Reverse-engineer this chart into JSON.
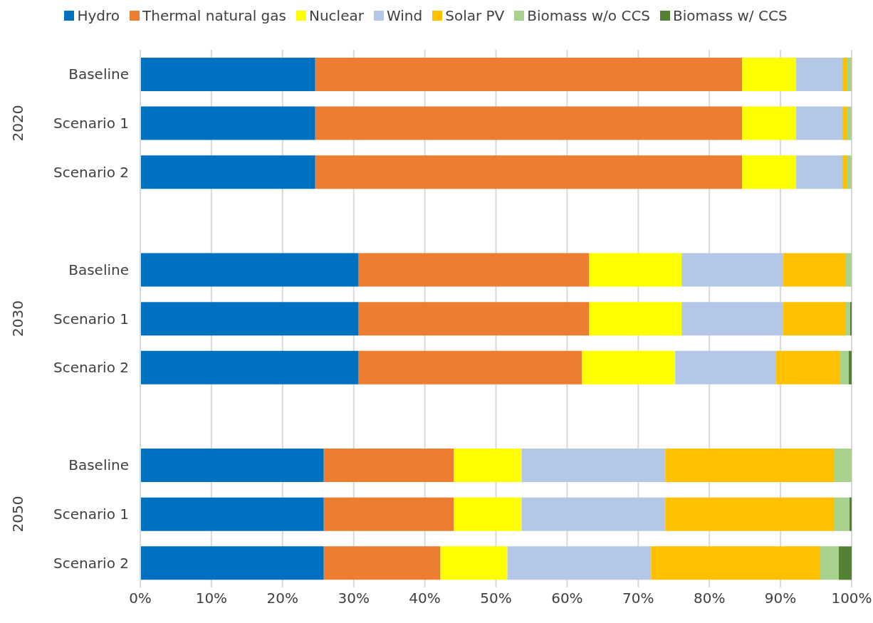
{
  "chart_data": {
    "type": "bar",
    "orientation": "horizontal",
    "stacked": true,
    "categories": [
      "Baseline",
      "Scenario 1",
      "Scenario 2",
      null,
      "Baseline",
      "Scenario 1",
      "Scenario 2",
      null,
      "Baseline",
      "Scenario 1",
      "Scenario 2"
    ],
    "annotations": [
      "2020",
      "2030",
      "2050"
    ],
    "series": [
      {
        "name": "Hydro",
        "color": "#0070c0",
        "values": [
          24.6,
          24.6,
          24.6,
          null,
          30.7,
          30.7,
          30.7,
          null,
          25.8,
          25.8,
          25.8
        ]
      },
      {
        "name": "Thermal natural gas",
        "color": "#ed7d31",
        "values": [
          60.0,
          60.0,
          60.0,
          null,
          32.4,
          32.4,
          31.4,
          null,
          18.3,
          18.3,
          16.4
        ]
      },
      {
        "name": "Nuclear",
        "color": "#ffff00",
        "values": [
          7.6,
          7.6,
          7.6,
          null,
          13.0,
          13.0,
          13.1,
          null,
          9.5,
          9.5,
          9.4
        ]
      },
      {
        "name": "Wind",
        "color": "#b4c7e7",
        "values": [
          6.5,
          6.5,
          6.5,
          null,
          14.3,
          14.3,
          14.2,
          null,
          20.2,
          20.2,
          20.2
        ]
      },
      {
        "name": "Solar PV",
        "color": "#ffc000",
        "values": [
          0.7,
          0.7,
          0.7,
          null,
          8.8,
          8.8,
          8.9,
          null,
          23.7,
          23.7,
          23.7
        ]
      },
      {
        "name": "Biomass w/o CCS",
        "color": "#a9d18e",
        "values": [
          0.6,
          0.6,
          0.6,
          null,
          0.8,
          0.6,
          1.3,
          null,
          2.5,
          2.2,
          2.7
        ]
      },
      {
        "name": "Biomass w/ CCS",
        "color": "#548235",
        "values": [
          0,
          0,
          0,
          null,
          0,
          0.2,
          0.4,
          null,
          0,
          0.3,
          1.8
        ]
      }
    ],
    "xlim": [
      0,
      100
    ],
    "xticks": [
      {
        "value": 0,
        "label": "0%"
      },
      {
        "value": 10,
        "label": "10%"
      },
      {
        "value": 20,
        "label": "20%"
      },
      {
        "value": 30,
        "label": "30%"
      },
      {
        "value": 40,
        "label": "40%"
      },
      {
        "value": 50,
        "label": "50%"
      },
      {
        "value": 60,
        "label": "60%"
      },
      {
        "value": 70,
        "label": "70%"
      },
      {
        "value": 80,
        "label": "80%"
      },
      {
        "value": 90,
        "label": "90%"
      },
      {
        "value": 100,
        "label": "100%"
      }
    ],
    "grid": "x",
    "legend": "top"
  }
}
